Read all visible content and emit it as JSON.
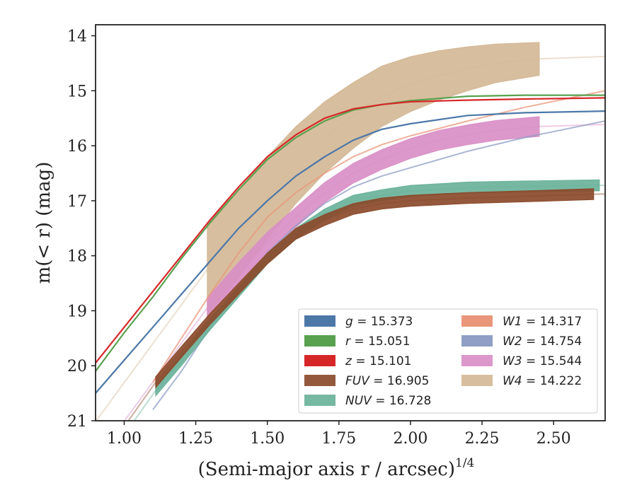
{
  "chart_data": {
    "type": "line",
    "xlabel": "(Semi-major axis r / arcsec)",
    "xlabel_exponent": "1/4",
    "ylabel": "m(< r) (mag)",
    "xlim": [
      0.9,
      2.68
    ],
    "ylim": [
      21,
      13.8
    ],
    "y_inverted": true,
    "x_ticks": [
      1.0,
      1.25,
      1.5,
      1.75,
      2.0,
      2.25,
      2.5
    ],
    "x_tick_labels": [
      "1.00",
      "1.25",
      "1.50",
      "1.75",
      "2.00",
      "2.25",
      "2.50"
    ],
    "y_ticks": [
      14,
      15,
      16,
      17,
      18,
      19,
      20,
      21
    ],
    "y_tick_labels": [
      "14",
      "15",
      "16",
      "17",
      "18",
      "19",
      "20",
      "21"
    ],
    "grid": false,
    "legend_position": "bottom-right",
    "legend_columns": 2,
    "series": [
      {
        "name": "g = 15.373",
        "legend_var": "g",
        "legend_value": "15.373",
        "color": "#4c78a8",
        "style": "line",
        "x": [
          0.9,
          1.0,
          1.1,
          1.2,
          1.3,
          1.4,
          1.5,
          1.6,
          1.7,
          1.8,
          1.9,
          2.0,
          2.2,
          2.4,
          2.68
        ],
        "y": [
          20.5,
          19.9,
          19.3,
          18.7,
          18.1,
          17.5,
          17.0,
          16.55,
          16.2,
          15.9,
          15.7,
          15.6,
          15.45,
          15.4,
          15.37
        ]
      },
      {
        "name": "r = 15.051",
        "legend_var": "r",
        "legend_value": "15.051",
        "color": "#59a14f",
        "style": "line",
        "x": [
          0.9,
          1.0,
          1.1,
          1.2,
          1.3,
          1.4,
          1.5,
          1.6,
          1.7,
          1.8,
          1.9,
          2.0,
          2.2,
          2.4,
          2.68
        ],
        "y": [
          20.1,
          19.4,
          18.75,
          18.05,
          17.4,
          16.8,
          16.25,
          15.85,
          15.55,
          15.35,
          15.25,
          15.18,
          15.1,
          15.08,
          15.08
        ]
      },
      {
        "name": "z = 15.101",
        "legend_var": "z",
        "legend_value": "15.101",
        "color": "#d62728",
        "style": "line",
        "x": [
          0.9,
          1.0,
          1.1,
          1.2,
          1.3,
          1.4,
          1.5,
          1.6,
          1.7,
          1.8,
          1.9,
          2.0,
          2.2,
          2.4,
          2.68
        ],
        "y": [
          19.95,
          19.3,
          18.65,
          18.0,
          17.35,
          16.75,
          16.2,
          15.8,
          15.5,
          15.33,
          15.25,
          15.2,
          15.17,
          15.15,
          15.13
        ]
      },
      {
        "name": "FUV = 16.905",
        "legend_var": "FUV",
        "legend_value": "16.905",
        "color": "#8b4a2b",
        "style": "band",
        "x": [
          1.11,
          1.2,
          1.3,
          1.4,
          1.5,
          1.6,
          1.7,
          1.8,
          1.9,
          2.0,
          2.2,
          2.4,
          2.64
        ],
        "y": [
          20.3,
          19.75,
          19.15,
          18.6,
          18.05,
          17.6,
          17.35,
          17.15,
          17.05,
          17.0,
          16.95,
          16.92,
          16.88
        ],
        "band": 0.1
      },
      {
        "name": "NUV = 16.728",
        "legend_var": "NUV",
        "legend_value": "16.728",
        "color": "#6ab29a",
        "style": "band",
        "x": [
          1.11,
          1.2,
          1.3,
          1.4,
          1.5,
          1.6,
          1.7,
          1.8,
          1.9,
          2.0,
          2.2,
          2.4,
          2.66
        ],
        "y": [
          20.45,
          19.9,
          19.25,
          18.65,
          18.05,
          17.6,
          17.25,
          17.0,
          16.9,
          16.82,
          16.76,
          16.74,
          16.72
        ],
        "band": 0.1
      },
      {
        "name": "W1 = 14.317",
        "legend_var": "W1",
        "legend_value": "14.317",
        "color": "#e9967a",
        "style": "line",
        "x": [
          1.1,
          1.2,
          1.3,
          1.4,
          1.5,
          1.6,
          1.7,
          1.8,
          1.9,
          2.0,
          2.2,
          2.4,
          2.68
        ],
        "y": [
          20.3,
          19.5,
          18.7,
          17.95,
          17.3,
          16.85,
          16.5,
          16.2,
          15.98,
          15.82,
          15.55,
          15.3,
          15.0
        ]
      },
      {
        "name": "W2 = 14.754",
        "legend_var": "W2",
        "legend_value": "14.754",
        "color": "#8f9ec4",
        "style": "line",
        "x": [
          1.1,
          1.2,
          1.3,
          1.4,
          1.5,
          1.6,
          1.7,
          1.8,
          1.9,
          2.0,
          2.2,
          2.4,
          2.68
        ],
        "y": [
          20.8,
          20.1,
          19.3,
          18.6,
          17.95,
          17.45,
          17.05,
          16.75,
          16.55,
          16.4,
          16.1,
          15.85,
          15.55
        ]
      },
      {
        "name": "W3 = 15.544",
        "legend_var": "W3",
        "legend_value": "15.544",
        "color": "#d98fc6",
        "style": "band",
        "x": [
          1.29,
          1.4,
          1.5,
          1.6,
          1.7,
          1.8,
          1.9,
          2.0,
          2.1,
          2.2,
          2.3,
          2.45
        ],
        "y": [
          18.95,
          18.3,
          17.75,
          17.3,
          16.85,
          16.5,
          16.25,
          16.05,
          15.9,
          15.8,
          15.72,
          15.65
        ],
        "band": 0.18
      },
      {
        "name": "W4 = 14.222",
        "legend_var": "W4",
        "legend_value": "14.222",
        "color": "#d4b896",
        "style": "band",
        "x": [
          1.29,
          1.4,
          1.5,
          1.6,
          1.7,
          1.8,
          1.9,
          2.0,
          2.1,
          2.2,
          2.3,
          2.45
        ],
        "y": [
          18.25,
          17.6,
          16.95,
          16.35,
          15.85,
          15.45,
          15.1,
          14.88,
          14.72,
          14.6,
          14.5,
          14.42
        ],
        "band_start": 0.85,
        "band_end": 0.3
      }
    ]
  }
}
